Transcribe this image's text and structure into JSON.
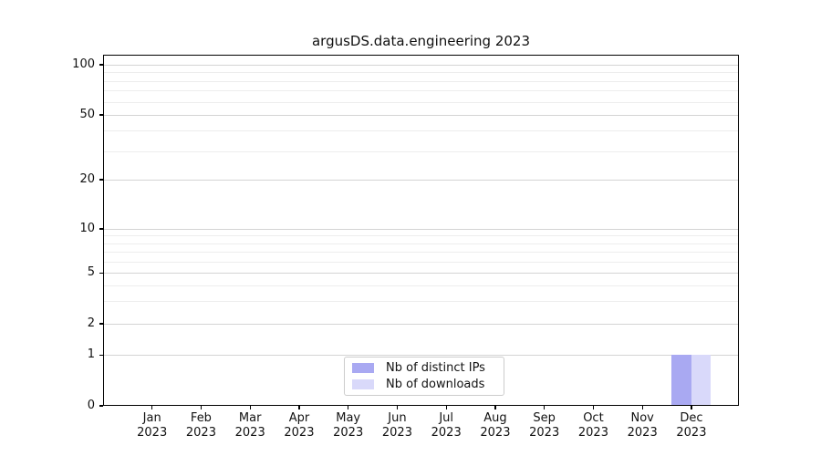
{
  "chart_data": {
    "type": "bar",
    "title": "argusDS.data.engineering 2023",
    "categories": [
      {
        "label": "Jan",
        "sublabel": "2023"
      },
      {
        "label": "Feb",
        "sublabel": "2023"
      },
      {
        "label": "Mar",
        "sublabel": "2023"
      },
      {
        "label": "Apr",
        "sublabel": "2023"
      },
      {
        "label": "May",
        "sublabel": "2023"
      },
      {
        "label": "Jun",
        "sublabel": "2023"
      },
      {
        "label": "Jul",
        "sublabel": "2023"
      },
      {
        "label": "Aug",
        "sublabel": "2023"
      },
      {
        "label": "Sep",
        "sublabel": "2023"
      },
      {
        "label": "Oct",
        "sublabel": "2023"
      },
      {
        "label": "Nov",
        "sublabel": "2023"
      },
      {
        "label": "Dec",
        "sublabel": "2023"
      }
    ],
    "series": [
      {
        "name": "Nb of distinct IPs",
        "color": "#a9a9f2",
        "values": [
          0,
          0,
          0,
          0,
          0,
          0,
          0,
          0,
          0,
          0,
          0,
          1
        ]
      },
      {
        "name": "Nb of downloads",
        "color": "#d9d9fa",
        "values": [
          0,
          0,
          0,
          0,
          0,
          0,
          0,
          0,
          0,
          0,
          0,
          1
        ]
      }
    ],
    "xlabel": "",
    "ylabel": "",
    "yaxis": {
      "scale": "symlog",
      "range": [
        0,
        100
      ],
      "tick_values": [
        0,
        1,
        2,
        5,
        10,
        20,
        50,
        100
      ],
      "minor_gridline_values": [
        3,
        4,
        6,
        7,
        8,
        9,
        30,
        40,
        60,
        70,
        80,
        90
      ]
    },
    "grid": "on",
    "legend": {
      "position": "lower center",
      "entries": [
        "Nb of distinct IPs",
        "Nb of downloads"
      ]
    },
    "colors": {
      "spine": "#000000",
      "grid_major": "#d4d4d4",
      "grid_minor": "#ededed",
      "text": "#111111",
      "background": "#ffffff"
    }
  }
}
